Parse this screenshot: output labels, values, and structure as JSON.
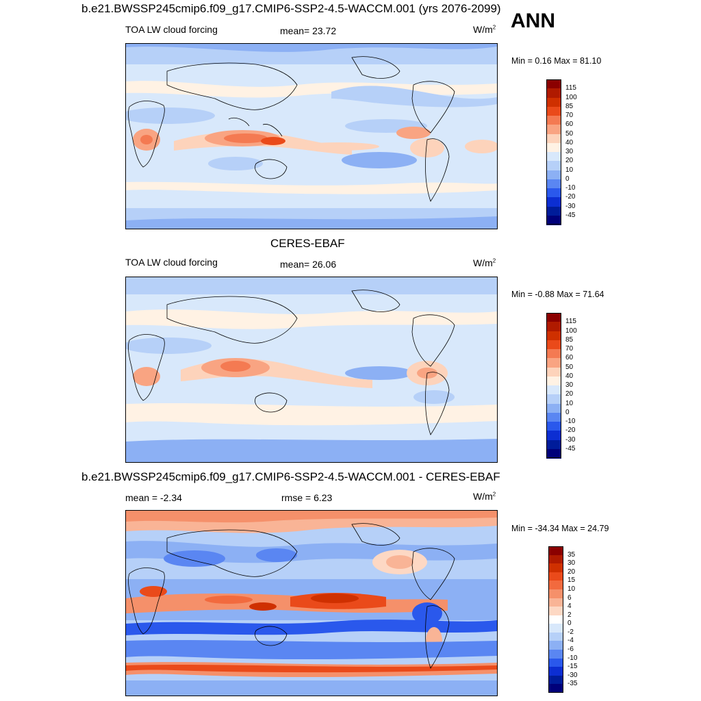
{
  "season": "ANN",
  "panels": [
    {
      "id": "model",
      "title": "b.e21.BWSSP245cmip6.f09_g17.CMIP6-SSP2-4.5-WACCM.001 (yrs 2076-2099)",
      "left_label": "TOA LW cloud forcing",
      "center_label": "mean=  23.72",
      "units": "W/m",
      "units_sup": "2",
      "minmax": "Min =   0.16 Max =  81.10",
      "colorbar": [
        "115",
        "100",
        "85",
        "70",
        "60",
        "50",
        "40",
        "30",
        "20",
        "10",
        "0",
        "-10",
        "-20",
        "-30",
        "-45"
      ],
      "colors": [
        "#8b0000",
        "#b01a00",
        "#cf3000",
        "#ea4a1a",
        "#f47a52",
        "#f9a482",
        "#fdd3bb",
        "#fff2e4",
        "#d8e8fb",
        "#b6d0f8",
        "#8cb0f4",
        "#5a86f2",
        "#2a58ec",
        "#0c2ed2",
        "#001c9a",
        "#00007a"
      ]
    },
    {
      "id": "obs",
      "title": "CERES-EBAF",
      "left_label": "TOA LW cloud forcing",
      "center_label": "mean=  26.06",
      "units": "W/m",
      "units_sup": "2",
      "minmax": "Min =  -0.88 Max =  71.64",
      "colorbar": [
        "115",
        "100",
        "85",
        "70",
        "60",
        "50",
        "40",
        "30",
        "20",
        "10",
        "0",
        "-10",
        "-20",
        "-30",
        "-45"
      ],
      "colors": [
        "#8b0000",
        "#b01a00",
        "#cf3000",
        "#ea4a1a",
        "#f47a52",
        "#f9a482",
        "#fdd3bb",
        "#fff2e4",
        "#d8e8fb",
        "#b6d0f8",
        "#8cb0f4",
        "#5a86f2",
        "#2a58ec",
        "#0c2ed2",
        "#001c9a",
        "#00007a"
      ]
    },
    {
      "id": "diff",
      "title": "b.e21.BWSSP245cmip6.f09_g17.CMIP6-SSP2-4.5-WACCM.001 - CERES-EBAF",
      "left_label": "mean =  -2.34",
      "center_label": "rmse =   6.23",
      "units": "W/m",
      "units_sup": "2",
      "minmax": "Min = -34.34 Max =  24.79",
      "colorbar": [
        "35",
        "30",
        "20",
        "15",
        "10",
        "6",
        "4",
        "2",
        "0",
        "-2",
        "-4",
        "-6",
        "-10",
        "-15",
        "-30",
        "-35"
      ],
      "colors": [
        "#8b0000",
        "#b01a00",
        "#cf3000",
        "#ea4a1a",
        "#f26a3e",
        "#f5906a",
        "#f9b496",
        "#fdd8c4",
        "#ffffff",
        "#d8e8fb",
        "#b6d0f8",
        "#8cb0f4",
        "#5a86f2",
        "#2a58ec",
        "#0c2ed2",
        "#001c9a",
        "#00007a"
      ]
    }
  ]
}
